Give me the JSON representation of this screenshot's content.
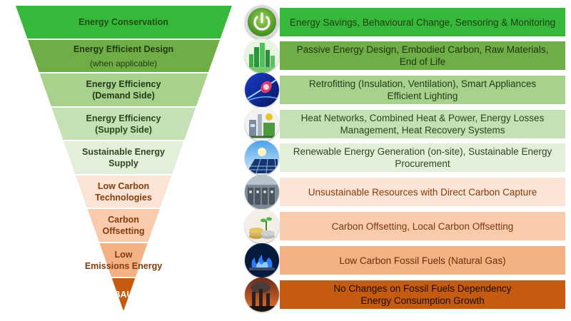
{
  "tiers": [
    {
      "label": "Energy Conservation",
      "sub": "",
      "fill": "#36b93a",
      "text_color": "#1f4d12",
      "description": [
        "Energy Savings, Behavioural Change, Sensoring & Monitoring"
      ],
      "box_fill": "#36b93a",
      "box_text_color": "#1e3d0e",
      "icon": "power-button-icon"
    },
    {
      "label": "Energy Efficient Design",
      "sub": "(when applicable)",
      "fill": "#6fad46",
      "text_color": "#1f3a12",
      "description": [
        "Passive Energy Design, Embodied Carbon, Raw Materials,",
        "End of Life"
      ],
      "box_fill": "#6fad46",
      "box_text_color": "#1e3410",
      "icon": "green-city-icon"
    },
    {
      "label": "Energy Efficiency",
      "sub": "(Demand Side)",
      "fill": "#a9d18e",
      "text_color": "#22391a",
      "description": [
        "Retrofitting (Insulation, Ventilation), Smart Appliances",
        "Efficient Lighting"
      ],
      "box_fill": "#a9d18e",
      "box_text_color": "#243a1a",
      "icon": "light-bulb-icon"
    },
    {
      "label": "Energy Efficiency",
      "sub": "(Supply Side)",
      "fill": "#c5e0b4",
      "text_color": "#2a4520",
      "description": [
        "Heat Networks, Combined Heat & Power, Energy Losses",
        "Management, Heat Recovery Systems"
      ],
      "box_fill": "#c5e0b4",
      "box_text_color": "#2a4320",
      "icon": "power-plant-icon"
    },
    {
      "label": "Sustainable Energy",
      "sub": "Supply",
      "fill": "#e2f0d9",
      "text_color": "#2f4a22",
      "description": [
        "Renewable Energy Generation (on-site), Sustainable Energy",
        "Procurement"
      ],
      "box_fill": "#e2f0d9",
      "box_text_color": "#2e4422",
      "icon": "solar-panel-icon"
    },
    {
      "label": "Low Carbon",
      "sub": "Technologies",
      "fill": "#fbe4d5",
      "text_color": "#833c0b",
      "description": [
        "Unsustainable Resources with Direct Carbon Capture"
      ],
      "box_fill": "#fbe4d5",
      "box_text_color": "#843c0c",
      "icon": "carbon-capture-icon"
    },
    {
      "label": "Carbon",
      "sub": "Offsetting",
      "fill": "#f8cbad",
      "text_color": "#833c0b",
      "description": [
        "Carbon Offsetting, Local Carbon Offsetting"
      ],
      "box_fill": "#f8cbad",
      "box_text_color": "#7d3a0c",
      "icon": "coins-plant-icon"
    },
    {
      "label": "Low",
      "sub": "Emissions Energy",
      "fill": "#f4b183",
      "text_color": "#843c0c",
      "description": [
        "Low Carbon Fossil Fuels (Natural Gas)"
      ],
      "box_fill": "#f4b183",
      "box_text_color": "#6a2f08",
      "icon": "gas-flame-icon"
    },
    {
      "label": "BAU",
      "sub": "",
      "fill": "#c55a11",
      "text_color": "#ffffff",
      "description": [
        "No Changes on Fossil Fuels Dependency",
        "Energy Consumption Growth"
      ],
      "box_fill": "#c55a11",
      "box_text_color": "#1a0d03",
      "icon": "factory-smoke-icon"
    }
  ]
}
